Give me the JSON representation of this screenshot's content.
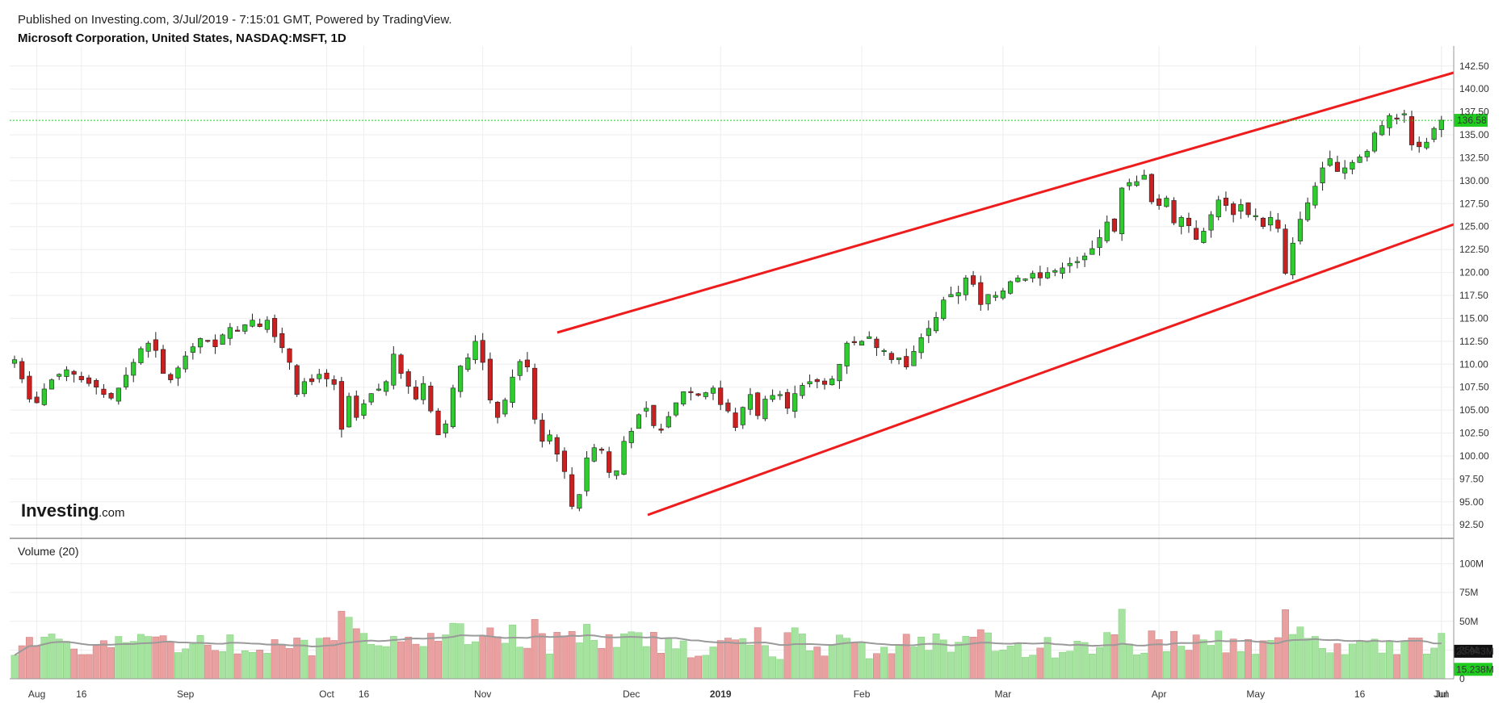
{
  "header": {
    "published": "Published on Investing.com, 3/Jul/2019 - 7:15:01 GMT, Powered by TradingView.",
    "symbol": "Microsoft Corporation, United States, NASDAQ:MSFT, 1D"
  },
  "logo": {
    "main": "Investing",
    "sub": ".com"
  },
  "volume_label": "Volume (20)",
  "colors": {
    "up": "#2ecc2e",
    "down": "#cc1f1f",
    "vol_up": "#a6e3a0",
    "vol_down": "#e8a0a0",
    "trendline": "#ee1c1c",
    "last_price": "#1fcc1f",
    "vol_ma": "#9a9a9a"
  },
  "chart_data": {
    "type": "candlestick",
    "x_labels": [
      "Aug",
      "16",
      "Sep",
      "Oct",
      "16",
      "Nov",
      "Dec",
      "2019",
      "Feb",
      "Mar",
      "Apr",
      "May",
      "16",
      "Jun",
      "Jul"
    ],
    "y_ticks": [
      "142.50",
      "140.00",
      "137.50",
      "135.00",
      "132.50",
      "130.00",
      "127.50",
      "125.00",
      "122.50",
      "120.00",
      "117.50",
      "115.00",
      "112.50",
      "110.00",
      "107.50",
      "105.00",
      "102.50",
      "100.00",
      "97.50",
      "95.00",
      "92.50"
    ],
    "ylim": [
      91.2,
      143.8
    ],
    "last_price": 136.58,
    "last_price_label": "136.58",
    "closes": [
      110.5,
      108.4,
      106.2,
      105.8,
      107.3,
      108.3,
      108.9,
      109.4,
      108.9,
      108.3,
      107.9,
      107.5,
      106.7,
      106.3,
      107.4,
      108.8,
      110.2,
      111.7,
      112.3,
      111.5,
      109.0,
      108.3,
      109.6,
      110.9,
      111.9,
      112.8,
      112.5,
      111.9,
      113.2,
      114.0,
      113.6,
      114.3,
      114.8,
      114.1,
      114.8,
      113.0,
      111.8,
      110.2,
      106.7,
      108.1,
      108.1,
      108.9,
      108.4,
      107.8,
      102.9,
      106.5,
      104.2,
      105.7,
      106.8,
      107.3,
      108.1,
      111.1,
      109.0,
      107.6,
      106.2,
      107.9,
      104.9,
      102.3,
      103.5,
      107.4,
      109.8,
      110.7,
      112.5,
      110.2,
      106.1,
      104.2,
      106.1,
      108.6,
      110.3,
      109.7,
      104.0,
      101.6,
      102.3,
      100.2,
      98.3,
      94.5,
      95.8,
      99.8,
      100.9,
      100.7,
      98.2,
      98.4,
      101.6,
      102.7,
      104.5,
      105.2,
      103.3,
      102.8,
      104.3,
      105.8,
      107.0,
      106.9,
      106.6,
      106.9,
      107.4,
      105.6,
      104.9,
      103.1,
      105.3,
      106.7,
      104.4,
      106.2,
      106.6,
      106.7,
      105.2,
      106.8,
      107.7,
      108.1,
      108.1,
      107.8,
      108.4,
      110.0,
      112.3,
      112.4,
      112.5,
      113.0,
      111.8,
      111.5,
      110.5,
      110.7,
      109.7,
      111.4,
      112.9,
      113.9,
      115.1,
      117.0,
      117.6,
      117.8,
      119.4,
      118.7,
      116.5,
      117.6,
      117.5,
      118.0,
      119.0,
      119.4,
      119.3,
      119.9,
      119.4,
      120.0,
      120.2,
      120.5,
      121.0,
      121.2,
      121.8,
      122.6,
      123.8,
      125.5,
      124.5,
      129.2,
      129.8,
      129.9,
      130.6,
      127.7,
      127.3,
      128.1,
      125.4,
      126.0,
      125.1,
      123.6,
      124.5,
      126.3,
      127.9,
      127.3,
      126.3,
      127.4,
      126.3,
      126.2,
      125.0,
      126.0,
      124.8,
      119.9,
      123.2,
      125.8,
      127.6,
      129.4,
      131.4,
      132.4,
      131.0,
      131.4,
      132.0,
      132.6,
      133.2,
      135.2,
      136.0,
      137.1,
      136.8,
      137.3,
      133.9,
      133.7,
      134.2,
      135.7,
      136.6
    ],
    "volume_ticks": [
      "100M",
      "75M",
      "50M",
      "25M",
      "0"
    ],
    "volume_ylim": [
      0,
      120
    ],
    "volume_last_ma_label": "23.943M",
    "volume_last_label": "15.238M",
    "volume_last_ma": 23.943,
    "volume_last": 15.238
  }
}
